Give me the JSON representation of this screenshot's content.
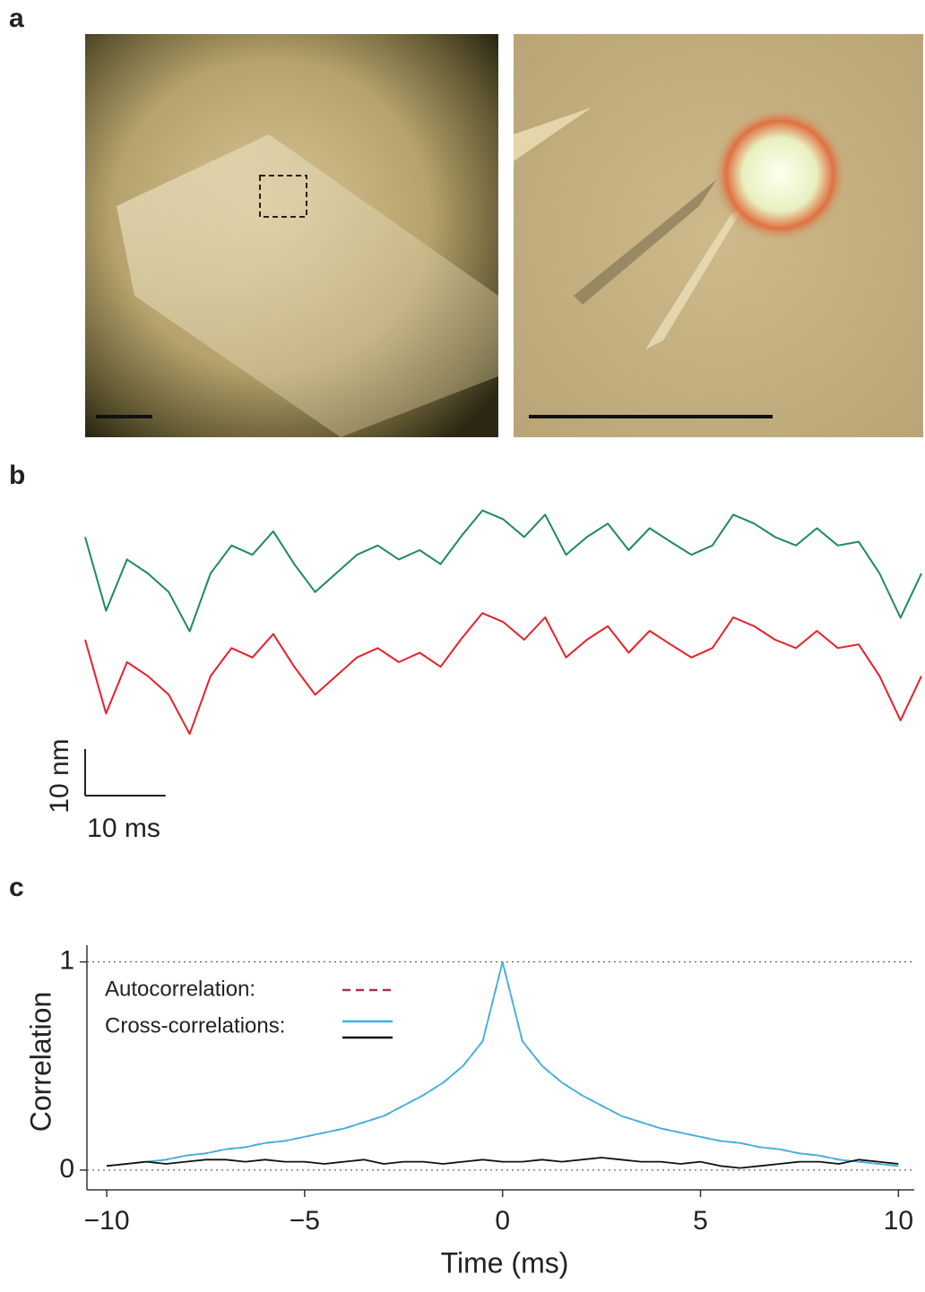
{
  "panel_labels": [
    "a",
    "b",
    "c"
  ],
  "chart_data": [
    {
      "type": "line",
      "x": [
        0,
        2.6,
        5.2,
        7.8,
        10.4,
        13,
        15.6,
        18.2,
        20.8,
        23.4,
        26,
        28.6,
        31.2,
        33.8,
        36.4,
        39,
        41.6,
        44.2,
        46.8,
        49.4,
        52,
        54.6,
        57.2,
        59.8,
        62.4,
        65,
        67.6,
        70.2,
        72.8,
        75.4,
        78,
        80.6,
        83.2,
        85.8,
        88.4,
        91,
        93.6,
        96.2,
        98.8,
        101.4,
        104
      ],
      "xlim": [
        0,
        104
      ],
      "ylim": [
        0,
        72
      ],
      "series": [
        {
          "color": "#1e8a5e",
          "values": [
            55.8,
            40,
            51,
            48,
            44,
            35.6,
            48,
            54,
            52,
            57,
            50,
            44,
            48,
            52,
            54,
            51,
            53,
            50,
            56,
            61.5,
            59.6,
            55.8,
            60.6,
            52,
            55.8,
            58.7,
            53,
            57.7,
            54.8,
            52,
            54,
            60.6,
            58.7,
            55.8,
            54,
            57.7,
            54,
            54.8,
            48,
            38.5,
            48
          ]
        },
        {
          "color": "#e8202a",
          "values": [
            33.8,
            18,
            29,
            26,
            22,
            13.6,
            26,
            32,
            30,
            35,
            28,
            22,
            26,
            30,
            32,
            29,
            31,
            28,
            34,
            39.5,
            37.6,
            33.8,
            38.6,
            30,
            33.8,
            36.7,
            31,
            35.7,
            32.8,
            30,
            32,
            38.6,
            36.7,
            33.8,
            32,
            35.7,
            32,
            32.8,
            26,
            16.5,
            26
          ]
        }
      ],
      "scale_bars": [
        {
          "value": 10,
          "label": "10 nm"
        },
        {
          "value": 10,
          "label": "10 ms"
        }
      ]
    },
    {
      "type": "line",
      "x_label": "Time (ms)",
      "y_label": "Correlation",
      "x": [
        -10,
        -9.5,
        -9,
        -8.5,
        -8,
        -7.5,
        -7,
        -6.5,
        -6,
        -5.5,
        -5,
        -4.5,
        -4,
        -3.5,
        -3,
        -2.5,
        -2,
        -1.5,
        -1,
        -0.5,
        0,
        0.5,
        1,
        1.5,
        2,
        2.5,
        3,
        3.5,
        4,
        4.5,
        5,
        5.5,
        6,
        6.5,
        7,
        7.5,
        8,
        8.5,
        9,
        9.5,
        10
      ],
      "xlim": [
        -10.5,
        10.4
      ],
      "ylim": [
        -0.095,
        1.08
      ],
      "xticks": [
        {
          "value": -10,
          "label": "−10"
        },
        {
          "value": -5,
          "label": "−5"
        },
        0,
        5,
        10
      ],
      "yticks": [
        0,
        1
      ],
      "hlines": [
        0,
        1
      ],
      "series": [
        {
          "name": "Autocorrelation:",
          "color": "#a8324a",
          "dashed": true,
          "values": [
            0.02,
            0.03,
            0.04,
            0.05,
            0.07,
            0.08,
            0.1,
            0.11,
            0.13,
            0.14,
            0.16,
            0.18,
            0.2,
            0.23,
            0.26,
            0.31,
            0.36,
            0.42,
            0.5,
            0.62,
            1,
            0.62,
            0.5,
            0.42,
            0.36,
            0.31,
            0.26,
            0.23,
            0.2,
            0.18,
            0.16,
            0.14,
            0.13,
            0.11,
            0.1,
            0.08,
            0.07,
            0.05,
            0.04,
            0.03,
            0.02
          ]
        },
        {
          "name": "Cross-correlations:",
          "color": "#3fb4e0",
          "values": [
            0.02,
            0.03,
            0.04,
            0.05,
            0.07,
            0.08,
            0.1,
            0.11,
            0.13,
            0.14,
            0.16,
            0.18,
            0.2,
            0.23,
            0.26,
            0.31,
            0.36,
            0.42,
            0.5,
            0.62,
            1,
            0.62,
            0.5,
            0.42,
            0.36,
            0.31,
            0.26,
            0.23,
            0.2,
            0.18,
            0.16,
            0.14,
            0.13,
            0.11,
            0.1,
            0.08,
            0.07,
            0.05,
            0.04,
            0.03,
            0.02
          ]
        },
        {
          "color": "#111111",
          "values": [
            0.02,
            0.03,
            0.04,
            0.03,
            0.04,
            0.05,
            0.05,
            0.04,
            0.05,
            0.04,
            0.04,
            0.03,
            0.04,
            0.05,
            0.03,
            0.04,
            0.04,
            0.03,
            0.04,
            0.05,
            0.04,
            0.04,
            0.05,
            0.04,
            0.05,
            0.06,
            0.05,
            0.04,
            0.04,
            0.03,
            0.04,
            0.02,
            0.01,
            0.02,
            0.03,
            0.04,
            0.04,
            0.03,
            0.05,
            0.04,
            0.03
          ]
        }
      ]
    }
  ]
}
